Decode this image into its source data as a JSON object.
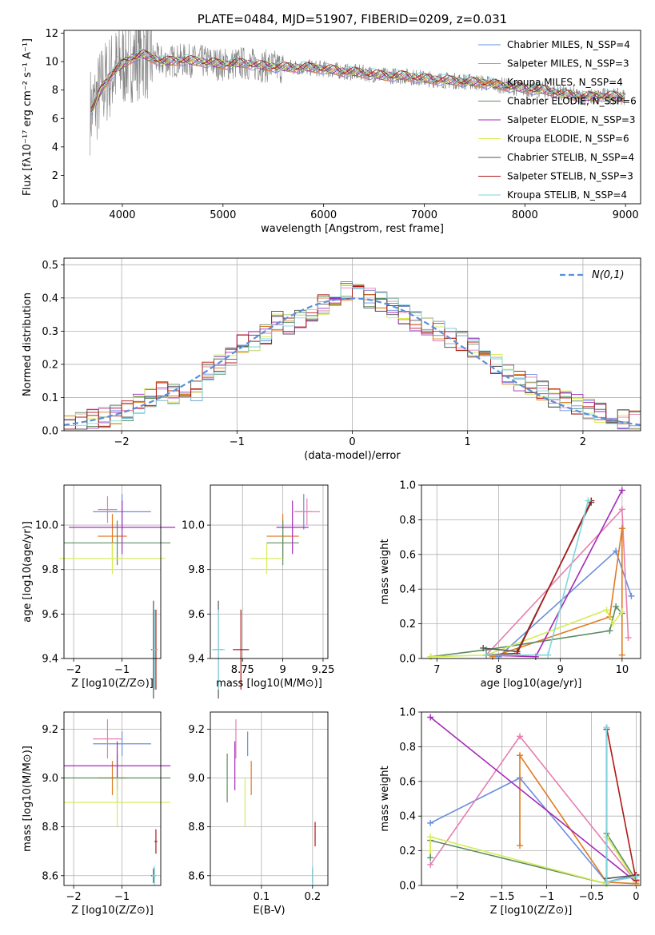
{
  "chart_data": [
    {
      "type": "line",
      "title": "PLATE=0484, MJD=51907, FIBERID=0209, z=0.031",
      "xlabel": "wavelength [Angstrom, rest frame]",
      "ylabel": "Flux [fλ10⁻¹⁷ erg cm⁻² s⁻¹ A⁻¹]",
      "xlim": [
        3420,
        9150
      ],
      "ylim": [
        0,
        12.2
      ],
      "xticks": [
        4000,
        5000,
        6000,
        7000,
        8000,
        9000
      ],
      "yticks": [
        0,
        2,
        4,
        6,
        8,
        10,
        12
      ],
      "grid": false,
      "legend": "top-right",
      "data_envelope": {
        "x": [
          3700,
          3800,
          3900,
          4000,
          4100,
          4200,
          4400,
          4600,
          4800,
          5000,
          5200,
          5400,
          5600,
          5800,
          6000,
          6200,
          6400,
          6600,
          6800,
          7000,
          7200,
          7400,
          7600,
          7800,
          8000,
          8200,
          8400,
          8600,
          8800,
          9000
        ],
        "y": [
          6.6,
          8.2,
          9.2,
          9.8,
          10.3,
          10.5,
          10.0,
          10.1,
          10.0,
          9.8,
          9.9,
          9.7,
          9.6,
          9.6,
          9.5,
          9.3,
          9.2,
          9.0,
          9.0,
          8.8,
          8.7,
          8.6,
          8.5,
          8.3,
          8.1,
          8.0,
          7.7,
          7.5,
          7.6,
          7.5
        ]
      },
      "series": [
        {
          "name": "Chabrier MILES, N_SSP=4",
          "color": "#6a8fdc"
        },
        {
          "name": "Salpeter MILES, N_SSP=3",
          "color": "#e67fb0"
        },
        {
          "name": "Kroupa MILES, N_SSP=4",
          "color": "#e07b20"
        },
        {
          "name": "Chabrier ELODIE, N_SSP=6",
          "color": "#5e8c62"
        },
        {
          "name": "Salpeter ELODIE, N_SSP=3",
          "color": "#a42ab8"
        },
        {
          "name": "Kroupa ELODIE, N_SSP=6",
          "color": "#d6ec55"
        },
        {
          "name": "Chabrier STELIB, N_SSP=4",
          "color": "#555555"
        },
        {
          "name": "Salpeter STELIB, N_SSP=3",
          "color": "#b01818"
        },
        {
          "name": "Kroupa STELIB, N_SSP=4",
          "color": "#7fd6dd"
        }
      ]
    },
    {
      "type": "bar",
      "xlabel": "(data-model)/error",
      "ylabel": "Normed distribution",
      "xlim": [
        -2.5,
        2.5
      ],
      "ylim": [
        0,
        0.52
      ],
      "xticks": [
        -2,
        -1,
        0,
        1,
        2
      ],
      "yticks": [
        0.0,
        0.1,
        0.2,
        0.3,
        0.4,
        0.5
      ],
      "grid": true,
      "legend": "top-right",
      "reference_curve": {
        "name": "N(0,1)",
        "color": "#5b8fd9"
      },
      "bin_width": 0.1,
      "histogram_centers": [
        -2.45,
        -2.35,
        -2.25,
        -2.15,
        -2.05,
        -1.95,
        -1.85,
        -1.75,
        -1.65,
        -1.55,
        -1.45,
        -1.35,
        -1.25,
        -1.15,
        -1.05,
        -0.95,
        -0.85,
        -0.75,
        -0.65,
        -0.55,
        -0.45,
        -0.35,
        -0.25,
        -0.15,
        -0.05,
        0.05,
        0.15,
        0.25,
        0.35,
        0.45,
        0.55,
        0.65,
        0.75,
        0.85,
        0.95,
        1.05,
        1.15,
        1.25,
        1.35,
        1.45,
        1.55,
        1.65,
        1.75,
        1.85,
        1.95,
        2.05,
        2.15,
        2.25,
        2.35,
        2.45
      ],
      "histogram_values": [
        0.02,
        0.025,
        0.035,
        0.04,
        0.05,
        0.06,
        0.08,
        0.1,
        0.12,
        0.11,
        0.13,
        0.12,
        0.18,
        0.2,
        0.22,
        0.26,
        0.27,
        0.29,
        0.33,
        0.32,
        0.34,
        0.36,
        0.38,
        0.39,
        0.42,
        0.41,
        0.4,
        0.39,
        0.37,
        0.35,
        0.33,
        0.31,
        0.3,
        0.28,
        0.27,
        0.25,
        0.22,
        0.2,
        0.17,
        0.15,
        0.14,
        0.12,
        0.1,
        0.09,
        0.08,
        0.065,
        0.055,
        0.045,
        0.035,
        0.03
      ],
      "series": [
        {
          "color": "#6a8fdc"
        },
        {
          "color": "#e67fb0"
        },
        {
          "color": "#e07b20"
        },
        {
          "color": "#5e8c62"
        },
        {
          "color": "#a42ab8"
        },
        {
          "color": "#d6ec55"
        },
        {
          "color": "#555555"
        },
        {
          "color": "#b01818"
        },
        {
          "color": "#7fd6dd"
        }
      ]
    },
    {
      "type": "scatter",
      "xlabel": "Z [log10(Z/Z⊙)]",
      "ylabel": "age [log10(age/yr)]",
      "xlim": [
        -2.2,
        -0.2
      ],
      "ylim": [
        9.4,
        10.18
      ],
      "xticks": [
        -2,
        -1
      ],
      "yticks": [
        9.4,
        9.6,
        9.8,
        10.0
      ],
      "grid": true,
      "points": [
        {
          "color": "#6a8fdc",
          "x": -1.0,
          "xerr": 0.6,
          "y": 10.06,
          "yerr": 0.08
        },
        {
          "color": "#e67fb0",
          "x": -1.3,
          "xerr": 0.2,
          "y": 10.07,
          "yerr": 0.06
        },
        {
          "color": "#e07b20",
          "x": -1.2,
          "xerr": 0.3,
          "y": 9.95,
          "yerr": 0.1
        },
        {
          "color": "#5e8c62",
          "x": -1.1,
          "xerr": 1.1,
          "y": 9.92,
          "yerr": 0.1
        },
        {
          "color": "#a42ab8",
          "x": -1.0,
          "xerr": 1.1,
          "y": 9.99,
          "yerr": 0.12
        },
        {
          "color": "#d6ec55",
          "x": -1.2,
          "xerr": 1.1,
          "y": 9.85,
          "yerr": 0.07
        },
        {
          "color": "#555555",
          "x": -0.35,
          "xerr": 0.05,
          "y": 9.44,
          "yerr": 0.22
        },
        {
          "color": "#b01818",
          "x": -0.3,
          "xerr": 0.03,
          "y": 9.44,
          "yerr": 0.18
        },
        {
          "color": "#7fd6dd",
          "x": -0.33,
          "xerr": 0.05,
          "y": 9.44,
          "yerr": 0.18
        }
      ]
    },
    {
      "type": "scatter",
      "xlabel": "mass [log10(M/M⊙)]",
      "xlim": [
        8.55,
        9.28
      ],
      "ylim": [
        9.4,
        10.18
      ],
      "xticks": [
        8.75,
        9.0,
        9.25
      ],
      "yticks": [
        9.4,
        9.6,
        9.8,
        10.0
      ],
      "grid": true,
      "points": [
        {
          "color": "#6a8fdc",
          "x": 9.13,
          "xerr": 0.05,
          "y": 10.06,
          "yerr": 0.08
        },
        {
          "color": "#e67fb0",
          "x": 9.15,
          "xerr": 0.08,
          "y": 10.06,
          "yerr": 0.06
        },
        {
          "color": "#e07b20",
          "x": 9.0,
          "xerr": 0.1,
          "y": 9.95,
          "yerr": 0.1
        },
        {
          "color": "#5e8c62",
          "x": 9.0,
          "xerr": 0.1,
          "y": 9.92,
          "yerr": 0.1
        },
        {
          "color": "#a42ab8",
          "x": 9.06,
          "xerr": 0.1,
          "y": 9.99,
          "yerr": 0.12
        },
        {
          "color": "#d6ec55",
          "x": 8.9,
          "xerr": 0.1,
          "y": 9.85,
          "yerr": 0.07
        },
        {
          "color": "#555555",
          "x": 8.6,
          "xerr": 0.03,
          "y": 9.44,
          "yerr": 0.22
        },
        {
          "color": "#b01818",
          "x": 8.74,
          "xerr": 0.05,
          "y": 9.44,
          "yerr": 0.18
        },
        {
          "color": "#7fd6dd",
          "x": 8.6,
          "xerr": 0.04,
          "y": 9.44,
          "yerr": 0.18
        }
      ]
    },
    {
      "type": "line",
      "xlabel": "age [log10(age/yr)]",
      "ylabel": "mass weight",
      "xlim": [
        6.75,
        10.3
      ],
      "ylim": [
        0,
        1.0
      ],
      "xticks": [
        7,
        8,
        9,
        10
      ],
      "yticks": [
        0.0,
        0.2,
        0.4,
        0.6,
        0.8,
        1.0
      ],
      "grid": true,
      "series": [
        {
          "color": "#6a8fdc",
          "x": [
            7.8,
            8.0,
            9.9,
            10.15
          ],
          "y": [
            0.02,
            0.01,
            0.62,
            0.36
          ]
        },
        {
          "color": "#e67fb0",
          "x": [
            7.8,
            10.0,
            10.1
          ],
          "y": [
            0.02,
            0.86,
            0.12
          ]
        },
        {
          "color": "#e07b20",
          "x": [
            7.9,
            9.8,
            10.0,
            10.0
          ],
          "y": [
            0.01,
            0.24,
            0.75,
            0.02
          ]
        },
        {
          "color": "#5e8c62",
          "x": [
            6.9,
            7.8,
            9.8,
            9.9,
            10.0
          ],
          "y": [
            0.01,
            0.05,
            0.16,
            0.3,
            0.26
          ]
        },
        {
          "color": "#a42ab8",
          "x": [
            7.8,
            8.6,
            10.0
          ],
          "y": [
            0.02,
            0.01,
            0.97
          ]
        },
        {
          "color": "#d6ec55",
          "x": [
            6.9,
            7.8,
            9.75,
            9.85,
            10.0
          ],
          "y": [
            0.01,
            0.02,
            0.28,
            0.2,
            0.27
          ]
        },
        {
          "color": "#555555",
          "x": [
            7.75,
            8.3,
            9.5
          ],
          "y": [
            0.06,
            0.04,
            0.9
          ]
        },
        {
          "color": "#b01818",
          "x": [
            7.8,
            8.3,
            9.5
          ],
          "y": [
            0.02,
            0.03,
            0.91
          ]
        },
        {
          "color": "#7fd6dd",
          "x": [
            7.8,
            8.8,
            9.45
          ],
          "y": [
            0.02,
            0.02,
            0.91
          ]
        }
      ]
    },
    {
      "type": "scatter",
      "xlabel": "Z [log10(Z/Z⊙)]",
      "ylabel": "mass [log10(M/M⊙)]",
      "xlim": [
        -2.2,
        -0.2
      ],
      "ylim": [
        8.56,
        9.27
      ],
      "xticks": [
        -2,
        -1
      ],
      "yticks": [
        8.6,
        8.8,
        9.0,
        9.2
      ],
      "grid": true,
      "points": [
        {
          "color": "#6a8fdc",
          "x": -1.0,
          "xerr": 0.6,
          "y": 9.14,
          "yerr": 0.05
        },
        {
          "color": "#e67fb0",
          "x": -1.3,
          "xerr": 0.3,
          "y": 9.16,
          "yerr": 0.08
        },
        {
          "color": "#e07b20",
          "x": -1.2,
          "xerr": 0.3,
          "y": 9.0,
          "yerr": 0.07
        },
        {
          "color": "#5e8c62",
          "x": -1.1,
          "xerr": 1.1,
          "y": 9.0,
          "yerr": 0.1
        },
        {
          "color": "#a42ab8",
          "x": -1.1,
          "xerr": 1.1,
          "y": 9.05,
          "yerr": 0.1
        },
        {
          "color": "#d6ec55",
          "x": -1.1,
          "xerr": 1.1,
          "y": 8.9,
          "yerr": 0.1
        },
        {
          "color": "#555555",
          "x": -0.35,
          "xerr": 0.05,
          "y": 8.6,
          "yerr": 0.03
        },
        {
          "color": "#b01818",
          "x": -0.3,
          "xerr": 0.03,
          "y": 8.74,
          "yerr": 0.05
        },
        {
          "color": "#7fd6dd",
          "x": -0.33,
          "xerr": 0.05,
          "y": 8.6,
          "yerr": 0.04
        }
      ]
    },
    {
      "type": "scatter",
      "xlabel": "E(B-V)",
      "xlim": [
        0.0,
        0.23
      ],
      "ylim": [
        8.56,
        9.27
      ],
      "xticks": [
        0.1,
        0.2
      ],
      "yticks": [
        8.6,
        8.8,
        9.0,
        9.2
      ],
      "grid": true,
      "points": [
        {
          "color": "#6a8fdc",
          "x": 0.073,
          "xerr": 0.0,
          "y": 9.14,
          "yerr": 0.05
        },
        {
          "color": "#e67fb0",
          "x": 0.05,
          "xerr": 0.0,
          "y": 9.16,
          "yerr": 0.08
        },
        {
          "color": "#e07b20",
          "x": 0.08,
          "xerr": 0.0,
          "y": 9.0,
          "yerr": 0.07
        },
        {
          "color": "#5e8c62",
          "x": 0.033,
          "xerr": 0.0,
          "y": 9.0,
          "yerr": 0.1
        },
        {
          "color": "#a42ab8",
          "x": 0.048,
          "xerr": 0.0,
          "y": 9.05,
          "yerr": 0.1
        },
        {
          "color": "#d6ec55",
          "x": 0.068,
          "xerr": 0.0,
          "y": 8.9,
          "yerr": 0.1
        },
        {
          "color": "#555555",
          "x": 0.2,
          "xerr": 0.0,
          "y": 8.6,
          "yerr": 0.03
        },
        {
          "color": "#b01818",
          "x": 0.205,
          "xerr": 0.0,
          "y": 8.77,
          "yerr": 0.05
        },
        {
          "color": "#7fd6dd",
          "x": 0.2,
          "xerr": 0.0,
          "y": 8.6,
          "yerr": 0.04
        }
      ]
    },
    {
      "type": "line",
      "xlabel": "Z [log10(Z/Z⊙)]",
      "ylabel": "mass weight",
      "xlim": [
        -2.4,
        0.05
      ],
      "ylim": [
        0,
        1.0
      ],
      "xticks": [
        -2.0,
        -1.5,
        -1.0,
        -0.5,
        0.0
      ],
      "yticks": [
        0.0,
        0.2,
        0.4,
        0.6,
        0.8,
        1.0
      ],
      "grid": true,
      "series": [
        {
          "color": "#6a8fdc",
          "x": [
            -2.3,
            -1.3,
            -0.33,
            0.0
          ],
          "y": [
            0.36,
            0.62,
            0.02,
            0.06
          ]
        },
        {
          "color": "#e67fb0",
          "x": [
            -2.3,
            -1.3,
            0.0
          ],
          "y": [
            0.12,
            0.86,
            0.02
          ]
        },
        {
          "color": "#e07b20",
          "x": [
            -1.3,
            -1.3,
            -0.33,
            0.0
          ],
          "y": [
            0.23,
            0.75,
            0.02,
            0.01
          ]
        },
        {
          "color": "#5e8c62",
          "x": [
            -2.3,
            -2.3,
            -0.33,
            -0.33,
            0.0
          ],
          "y": [
            0.16,
            0.26,
            0.01,
            0.3,
            0.03
          ]
        },
        {
          "color": "#a42ab8",
          "x": [
            -2.3,
            0.0
          ],
          "y": [
            0.97,
            0.02
          ]
        },
        {
          "color": "#d6ec55",
          "x": [
            -2.3,
            -2.3,
            -0.33,
            -0.33,
            0.0
          ],
          "y": [
            0.2,
            0.28,
            0.01,
            0.28,
            0.02
          ]
        },
        {
          "color": "#555555",
          "x": [
            -0.33,
            -0.33,
            0.0
          ],
          "y": [
            0.9,
            0.04,
            0.06
          ]
        },
        {
          "color": "#b01818",
          "x": [
            -0.33,
            0.0,
            0.0
          ],
          "y": [
            0.91,
            0.03,
            0.06
          ]
        },
        {
          "color": "#7fd6dd",
          "x": [
            -0.33,
            -0.33,
            0.0
          ],
          "y": [
            0.91,
            0.02,
            0.05
          ]
        }
      ]
    }
  ]
}
